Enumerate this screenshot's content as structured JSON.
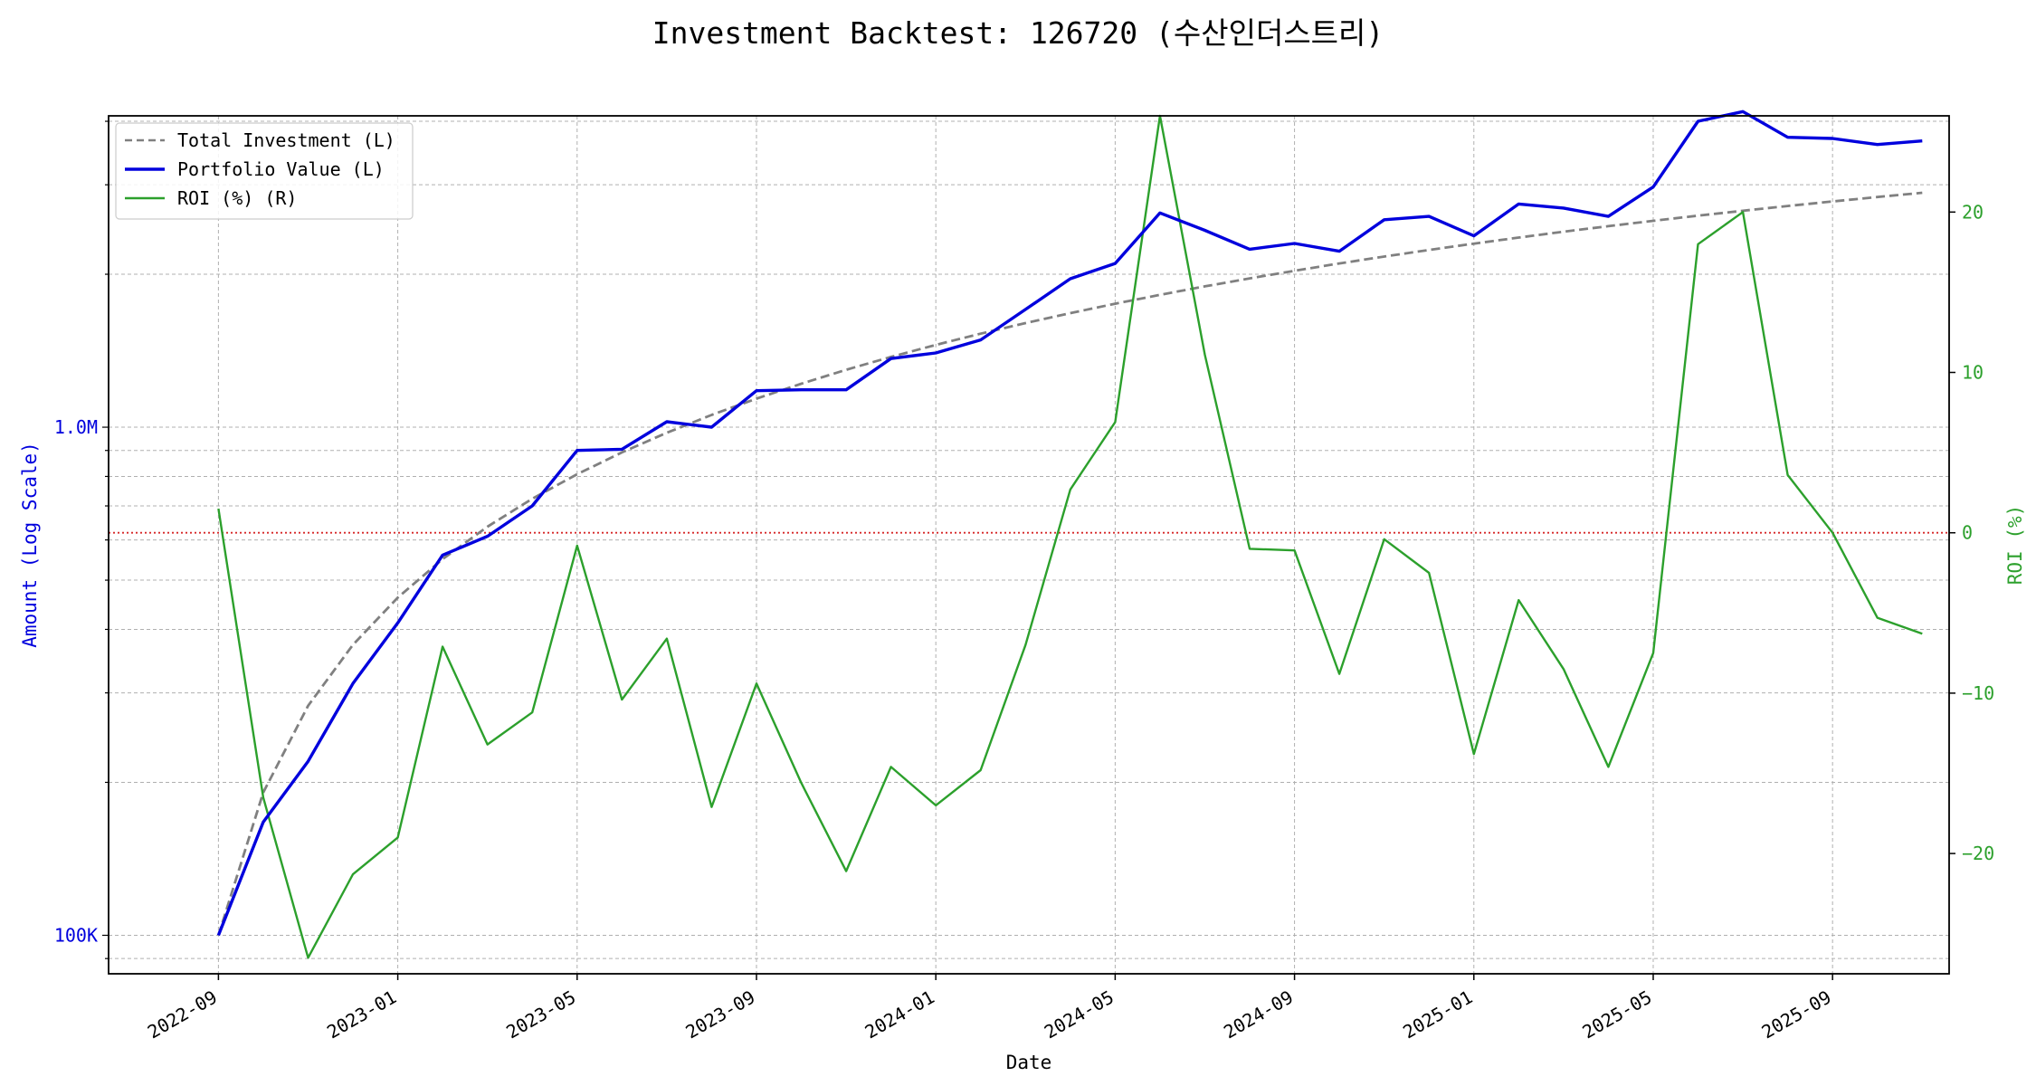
{
  "chart_data": {
    "type": "line",
    "title": "Investment Backtest: 126720 (수산인더스트리)",
    "xlabel": "Date",
    "ylabel_left": "Amount (Log Scale)",
    "ylabel_right": "ROI (%)",
    "left_scale": "log",
    "left_ylim": [
      84000,
      4100000
    ],
    "right_ylim": [
      -27.5,
      26.0
    ],
    "left_ticks": [
      {
        "value": 100000,
        "label": "100K"
      },
      {
        "value": 1000000,
        "label": "1.0M"
      }
    ],
    "right_ticks": [
      -20,
      -10,
      0,
      10,
      20
    ],
    "x_ticks": [
      "2022-09",
      "2023-01",
      "2023-05",
      "2023-09",
      "2024-01",
      "2024-05",
      "2024-09",
      "2025-01",
      "2025-05",
      "2025-09"
    ],
    "x_range": [
      "2022-07",
      "2025-12"
    ],
    "grid": true,
    "legend_position": "top-left",
    "reference_line": {
      "axis": "right",
      "value": 0,
      "style": "dotted",
      "color": "#d62728"
    },
    "x": [
      "2022-09",
      "2022-10",
      "2022-11",
      "2022-12",
      "2023-01",
      "2023-02",
      "2023-03",
      "2023-04",
      "2023-05",
      "2023-06",
      "2023-07",
      "2023-08",
      "2023-09",
      "2023-10",
      "2023-11",
      "2023-12",
      "2024-01",
      "2024-02",
      "2024-03",
      "2024-04",
      "2024-05",
      "2024-06",
      "2024-07",
      "2024-08",
      "2024-09",
      "2024-10",
      "2024-11",
      "2024-12",
      "2025-01",
      "2025-02",
      "2025-03",
      "2025-04",
      "2025-05",
      "2025-06",
      "2025-07",
      "2025-08",
      "2025-09",
      "2025-10",
      "2025-11"
    ],
    "series": [
      {
        "name": "Total Investment (L)",
        "axis": "left",
        "color": "#808080",
        "style": "dashed",
        "values": [
          100000,
          191000,
          283000,
          373000,
          462000,
          550000,
          637000,
          723000,
          808000,
          892000,
          975000,
          1057000,
          1138000,
          1218000,
          1297000,
          1375000,
          1452000,
          1528000,
          1603000,
          1677000,
          1750000,
          1822000,
          1893000,
          1963000,
          2032000,
          2100000,
          2167000,
          2233000,
          2298000,
          2362000,
          2425000,
          2487000,
          2548000,
          2608000,
          2667000,
          2725000,
          2782000,
          2838000,
          2893000
        ]
      },
      {
        "name": "Portfolio Value (L)",
        "axis": "left",
        "color": "#0000dd",
        "style": "solid",
        "values": [
          100000,
          167000,
          220000,
          313000,
          412000,
          560000,
          610000,
          700000,
          900000,
          905000,
          1025000,
          1000000,
          1180000,
          1185000,
          1185000,
          1365000,
          1400000,
          1485000,
          1705000,
          1960000,
          2100000,
          2640000,
          2440000,
          2240000,
          2300000,
          2220000,
          2560000,
          2600000,
          2380000,
          2750000,
          2700000,
          2600000,
          2970000,
          4000000,
          4180000,
          3720000,
          3700000,
          3600000,
          3660000
        ]
      },
      {
        "name": "ROI (%) (R)",
        "axis": "right",
        "color": "#2ca02c",
        "style": "solid",
        "values": [
          1.5,
          -16.5,
          -26.5,
          -21.3,
          -19.0,
          -7.1,
          -13.2,
          -11.2,
          -0.8,
          -10.4,
          -6.6,
          -17.1,
          -9.4,
          -15.6,
          -21.1,
          -14.6,
          -17.0,
          -14.8,
          -7.0,
          2.7,
          6.9,
          26.0,
          11.1,
          -1.0,
          -1.1,
          -8.8,
          -0.4,
          -2.5,
          -13.8,
          -4.2,
          -8.5,
          -14.6,
          -7.5,
          18.0,
          20.0,
          3.6,
          0.0,
          -5.3,
          -6.3
        ]
      }
    ]
  }
}
